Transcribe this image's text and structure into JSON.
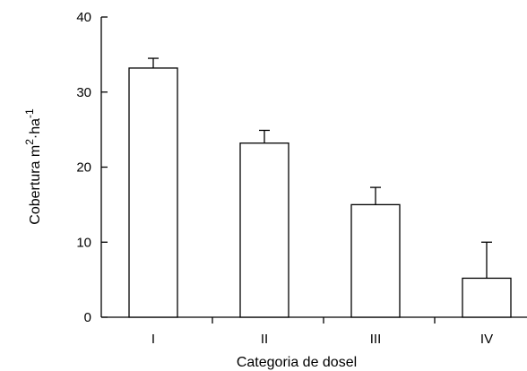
{
  "chart_data": {
    "type": "bar",
    "categories": [
      "I",
      "II",
      "III",
      "IV"
    ],
    "values": [
      33.2,
      23.2,
      15.0,
      5.2
    ],
    "error_plus": [
      1.3,
      1.7,
      2.3,
      4.8
    ],
    "xlabel": "Categoria de dosel",
    "ylabel": {
      "base": "Cobertura m",
      "sup1": "2",
      "mid": "·ha",
      "sup2": "-1"
    },
    "ylim": [
      0,
      40
    ],
    "yticks": [
      0,
      10,
      20,
      30,
      40
    ],
    "grid": false,
    "legend": "none",
    "colors": {
      "bar_fill": "#ffffff",
      "bar_stroke": "#000000"
    }
  }
}
